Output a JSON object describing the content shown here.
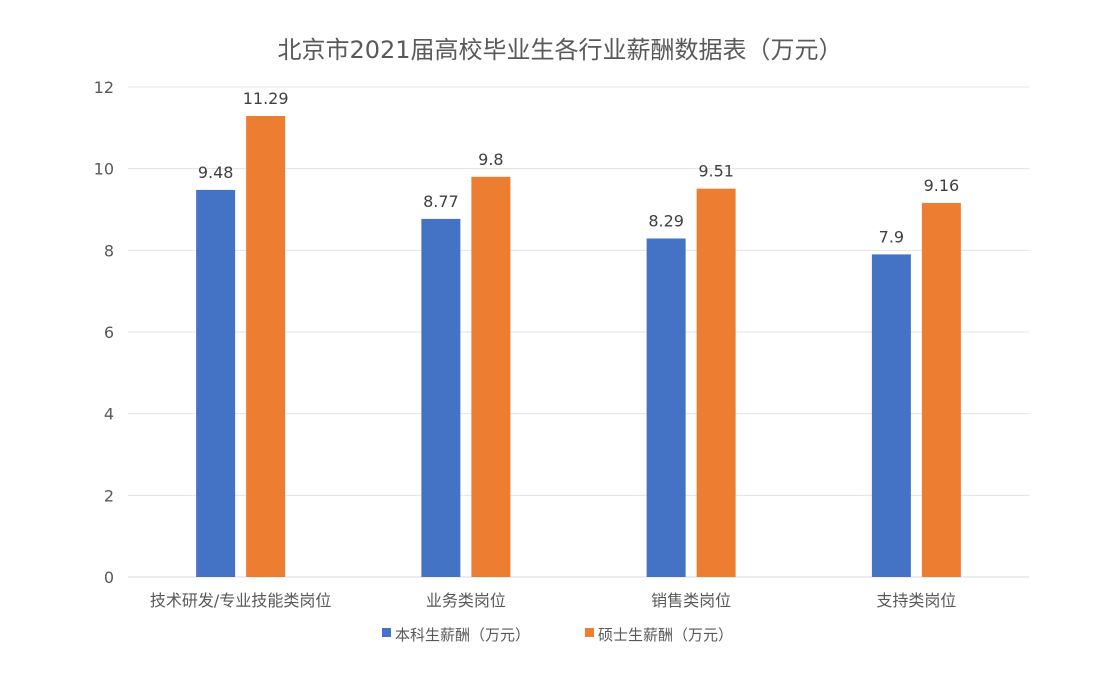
{
  "chart_data": {
    "type": "bar",
    "title": "北京市2021届高校毕业生各行业薪酬数据表（万元）",
    "xlabel": "",
    "ylabel": "",
    "categories": [
      "技术研发/专业技能类岗位",
      "业务类岗位",
      "销售类岗位",
      "支持类岗位"
    ],
    "series": [
      {
        "name": "本科生薪酬（万元）",
        "values": [
          9.48,
          8.77,
          8.29,
          7.9
        ],
        "color": "#4472C4"
      },
      {
        "name": "硕士生薪酬（万元）",
        "values": [
          11.29,
          9.8,
          9.51,
          9.16
        ],
        "color": "#ED7D31"
      }
    ],
    "ylim": [
      0,
      12
    ],
    "yticks": [
      "0",
      "2",
      "4",
      "6",
      "8",
      "10",
      "12"
    ],
    "grid": true,
    "legend_position": "bottom"
  }
}
